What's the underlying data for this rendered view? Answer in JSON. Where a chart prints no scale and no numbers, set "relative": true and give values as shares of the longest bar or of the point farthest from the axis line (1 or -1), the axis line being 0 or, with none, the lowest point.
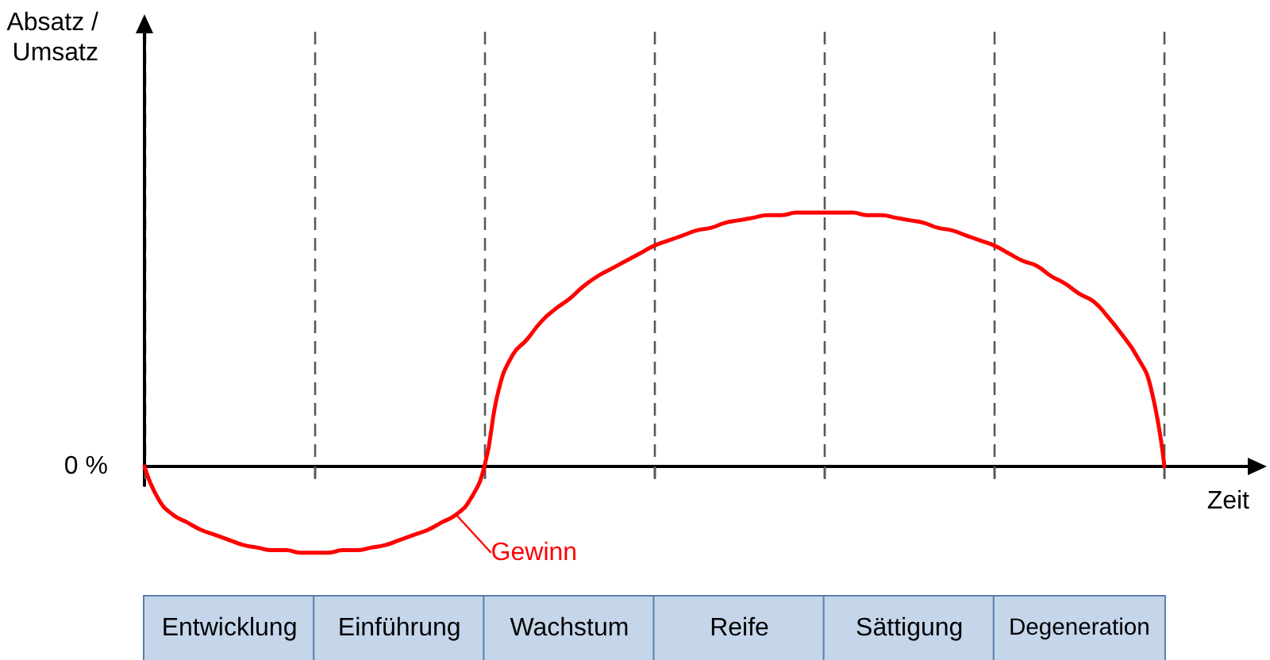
{
  "chart_data": {
    "type": "line",
    "relative": true,
    "xlabel": "Zeit",
    "annotations": [
      "Absatz / Umsatz",
      "0 %"
    ],
    "tick_labels": "x",
    "grid": "x",
    "marker": "none",
    "line_style": "solid",
    "categories": [
      null,
      null,
      null,
      null,
      null,
      null,
      "Entwicklung",
      null,
      null,
      null,
      null,
      null,
      null,
      null,
      null,
      null,
      null,
      null,
      "Einführung",
      null,
      null,
      null,
      null,
      null,
      null,
      null,
      null,
      null,
      null,
      null,
      "Wachstum",
      null,
      null,
      null,
      null,
      null,
      null,
      null,
      null,
      null,
      null,
      null,
      "Reife",
      null,
      null,
      null,
      null,
      null,
      null,
      null,
      null,
      null,
      null,
      null,
      "Sättigung",
      null,
      null,
      null,
      null,
      null,
      null,
      null,
      null,
      null,
      null,
      null,
      "Degeneration",
      null,
      null,
      null,
      null,
      null,
      null,
      null,
      null,
      null,
      null,
      null,
      null
    ],
    "series": [
      {
        "name": "Gewinn",
        "color": "#ff0000",
        "values": [
          0,
          -0.13,
          -0.19,
          -0.22,
          -0.25,
          -0.27,
          -0.29,
          -0.31,
          -0.32,
          -0.33,
          -0.33,
          -0.34,
          -0.34,
          -0.34,
          -0.33,
          -0.33,
          -0.32,
          -0.31,
          -0.29,
          -0.27,
          -0.25,
          -0.22,
          -0.19,
          -0.13,
          0,
          0.3,
          0.44,
          0.5,
          0.57,
          0.62,
          0.66,
          0.71,
          0.75,
          0.78,
          0.81,
          0.84,
          0.87,
          0.89,
          0.91,
          0.93,
          0.94,
          0.96,
          0.97,
          0.98,
          0.99,
          0.99,
          1,
          1,
          1,
          1,
          1,
          0.99,
          0.99,
          0.98,
          0.97,
          0.96,
          0.94,
          0.93,
          0.91,
          0.89,
          0.87,
          0.84,
          0.81,
          0.79,
          0.75,
          0.72,
          0.68,
          0.65,
          0.59,
          0.52,
          0.44,
          0.32,
          0,
          null,
          null,
          null,
          null,
          null,
          null
        ]
      }
    ]
  }
}
